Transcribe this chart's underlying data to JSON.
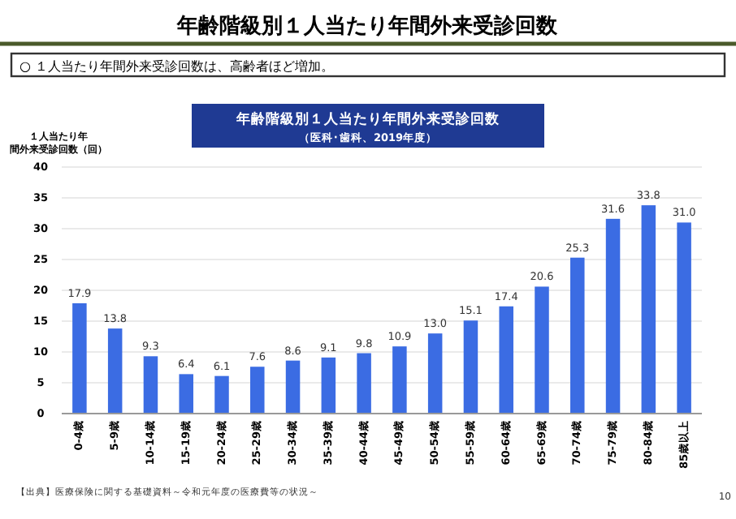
{
  "chart_data": {
    "type": "bar",
    "title": "年齢階級別１人当たり年間外来受診回数",
    "subtitle": "年齢階級別１人当たり年間外来受診回数",
    "annotations": [
      "○ １人当たり年間外来受診回数は、高齢者ほど増加。",
      "（医科･歯科、2019年度）",
      "【出典】医療保険に関する基礎資料～令和元年度の医療費等の状況～",
      "10"
    ],
    "ylabel": "１人当たり年間外来受診回数（回）",
    "categories": [
      "0-4歳",
      "5-9歳",
      "10-14歳",
      "15-19歳",
      "20-24歳",
      "25-29歳",
      "30-34歳",
      "35-39歳",
      "40-44歳",
      "45-49歳",
      "50-54歳",
      "55-59歳",
      "60-64歳",
      "65-69歳",
      "70-74歳",
      "75-79歳",
      "80-84歳",
      "85歳以上"
    ],
    "values": [
      17.9,
      13.8,
      9.3,
      6.4,
      6.1,
      7.6,
      8.6,
      9.1,
      9.8,
      10.9,
      13.0,
      15.1,
      17.4,
      20.6,
      25.3,
      31.6,
      33.8,
      31.0
    ],
    "value_labels": [
      "17.9",
      "13.8",
      "9.3",
      "6.4",
      "6.1",
      "7.6",
      "8.6",
      "9.1",
      "9.8",
      "10.9",
      "13.0",
      "15.1",
      "17.4",
      "20.6",
      "25.3",
      "31.6",
      "33.8",
      "31.0"
    ],
    "color": "#3b6ce3",
    "ylim": [
      0,
      40
    ],
    "yticks": [
      0,
      5,
      10,
      15,
      20,
      25,
      30,
      35,
      40
    ],
    "grid": "y"
  }
}
